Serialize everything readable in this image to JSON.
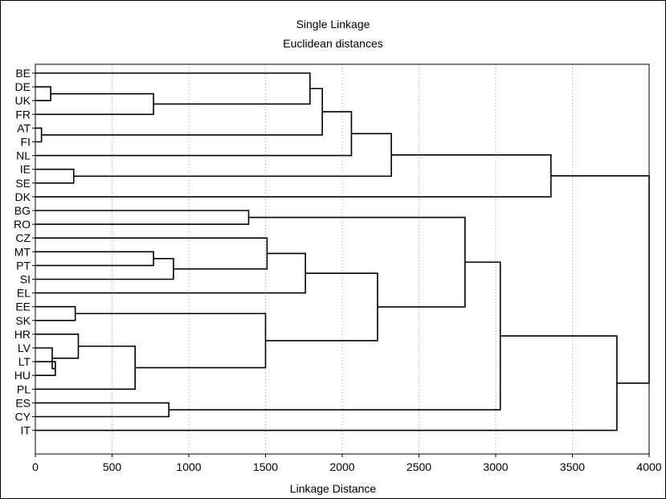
{
  "chart_data": {
    "type": "dendrogram",
    "title": "Single Linkage",
    "subtitle": "Euclidean distances",
    "xlabel": "Linkage Distance",
    "xlim": [
      0,
      4000
    ],
    "xticks": [
      0,
      500,
      1000,
      1500,
      2000,
      2500,
      3000,
      3500,
      4000
    ],
    "grid": "vertical dotted",
    "leaves": [
      "BE",
      "DE",
      "UK",
      "FR",
      "AT",
      "FI",
      "NL",
      "IE",
      "SE",
      "DK",
      "BG",
      "RO",
      "CZ",
      "MT",
      "PT",
      "SI",
      "EL",
      "EE",
      "SK",
      "HR",
      "LV",
      "LT",
      "HU",
      "PL",
      "ES",
      "CY",
      "IT"
    ],
    "merges": [
      {
        "id": "c1",
        "a": "DE",
        "b": "UK",
        "height": 100
      },
      {
        "id": "c2",
        "a": "c1",
        "b": "FR",
        "height": 770
      },
      {
        "id": "c3",
        "a": "BE",
        "b": "c2",
        "height": 1790
      },
      {
        "id": "c4",
        "a": "AT",
        "b": "FI",
        "height": 40
      },
      {
        "id": "c5",
        "a": "c3",
        "b": "c4",
        "height": 1870
      },
      {
        "id": "c6",
        "a": "c5",
        "b": "NL",
        "height": 2060
      },
      {
        "id": "c7",
        "a": "IE",
        "b": "SE",
        "height": 250
      },
      {
        "id": "c8",
        "a": "c6",
        "b": "c7",
        "height": 2320
      },
      {
        "id": "c9",
        "a": "c8",
        "b": "DK",
        "height": 3360
      },
      {
        "id": "c10",
        "a": "BG",
        "b": "RO",
        "height": 1390
      },
      {
        "id": "c11",
        "a": "MT",
        "b": "PT",
        "height": 770
      },
      {
        "id": "c12",
        "a": "c11",
        "b": "SI",
        "height": 900
      },
      {
        "id": "c13",
        "a": "CZ",
        "b": "c12",
        "height": 1510
      },
      {
        "id": "c14",
        "a": "c13",
        "b": "EL",
        "height": 1760
      },
      {
        "id": "c15",
        "a": "EE",
        "b": "SK",
        "height": 260
      },
      {
        "id": "c16",
        "a": "LT",
        "b": "HU",
        "height": 130
      },
      {
        "id": "c17",
        "a": "LV",
        "b": "c16",
        "height": 110
      },
      {
        "id": "c18",
        "a": "HR",
        "b": "c17",
        "height": 280
      },
      {
        "id": "c19",
        "a": "c18",
        "b": "PL",
        "height": 650
      },
      {
        "id": "c20",
        "a": "c15",
        "b": "c19",
        "height": 1500
      },
      {
        "id": "c21",
        "a": "c14",
        "b": "c20",
        "height": 2230
      },
      {
        "id": "c22",
        "a": "c10",
        "b": "c21",
        "height": 2800
      },
      {
        "id": "c23",
        "a": "ES",
        "b": "CY",
        "height": 870
      },
      {
        "id": "c24",
        "a": "c22",
        "b": "c23",
        "height": 3030
      },
      {
        "id": "c25",
        "a": "c24",
        "b": "IT",
        "height": 3790
      },
      {
        "id": "c26",
        "a": "c9",
        "b": "c25",
        "height": 4000
      }
    ]
  }
}
